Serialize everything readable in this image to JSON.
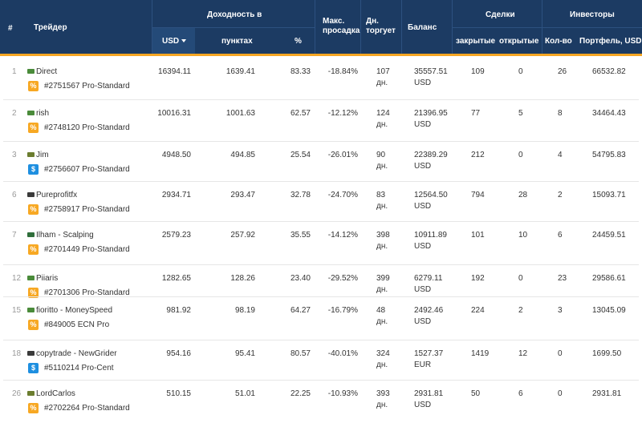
{
  "header": {
    "num": "#",
    "trader": "Трейдер",
    "yield_group": "Доходность в",
    "usd": "USD",
    "points": "пунктах",
    "percent": "%",
    "drawdown": "Макс. просадка",
    "days": "Дн. торгует",
    "balance": "Баланс",
    "deals_group": "Сделки",
    "closed": "закрытые",
    "open": "открытые",
    "investors_group": "Инвесторы",
    "count": "Кол-во",
    "portfolio": "Портфель, USD"
  },
  "rows": [
    {
      "rank": "1",
      "name": "Direct",
      "account": "#2751567 Pro-Standard",
      "badge": "%",
      "badge_type": "pct",
      "flag": "#4a8b3a",
      "usd": "16394.11",
      "points": "1639.41",
      "pct": "83.33",
      "drawdown": "-18.84%",
      "days_n": "107",
      "days_u": "дн.",
      "bal_n": "35557.51",
      "bal_c": "USD",
      "closed": "109",
      "open": "0",
      "inv": "26",
      "portfolio": "66532.82"
    },
    {
      "rank": "2",
      "name": "rish",
      "account": "#2748120 Pro-Standard",
      "badge": "%",
      "badge_type": "pct",
      "flag": "#4a8b3a",
      "usd": "10016.31",
      "points": "1001.63",
      "pct": "62.57",
      "drawdown": "-12.12%",
      "days_n": "124",
      "days_u": "дн.",
      "bal_n": "21396.95",
      "bal_c": "USD",
      "closed": "77",
      "open": "5",
      "inv": "8",
      "portfolio": "34464.43"
    },
    {
      "rank": "3",
      "name": "Jim",
      "account": "#2756607 Pro-Standard",
      "badge": "$",
      "badge_type": "usd",
      "flag": "#6b7d2f",
      "usd": "4948.50",
      "points": "494.85",
      "pct": "25.54",
      "drawdown": "-26.01%",
      "days_n": "90",
      "days_u": "дн.",
      "bal_n": "22389.29",
      "bal_c": "USD",
      "closed": "212",
      "open": "0",
      "inv": "4",
      "portfolio": "54795.83"
    },
    {
      "rank": "6",
      "name": "Pureprofitfx",
      "account": "#2758917 Pro-Standard",
      "badge": "%",
      "badge_type": "pct",
      "flag": "#3a3a3a",
      "usd": "2934.71",
      "points": "293.47",
      "pct": "32.78",
      "drawdown": "-24.70%",
      "days_n": "83",
      "days_u": "дн.",
      "bal_n": "12564.50",
      "bal_c": "USD",
      "closed": "794",
      "open": "28",
      "inv": "2",
      "portfolio": "15093.71"
    },
    {
      "rank": "7",
      "name": "Ilham - Scalping",
      "account": "#2701449 Pro-Standard",
      "badge": "%",
      "badge_type": "pct",
      "flag": "#2f6e3a",
      "usd": "2579.23",
      "points": "257.92",
      "pct": "35.55",
      "drawdown": "-14.12%",
      "days_n": "398",
      "days_u": "дн.",
      "bal_n": "10911.89",
      "bal_c": "USD",
      "closed": "101",
      "open": "10",
      "inv": "6",
      "portfolio": "24459.51"
    },
    {
      "rank": "12",
      "name": "Piiaris",
      "account": "#2701306 Pro-Standard",
      "badge": "%",
      "badge_type": "pct",
      "flag": "#4a8b3a",
      "usd": "1282.65",
      "points": "128.26",
      "pct": "23.40",
      "drawdown": "-29.52%",
      "days_n": "399",
      "days_u": "дн.",
      "bal_n": "6279.11",
      "bal_c": "USD",
      "closed": "192",
      "open": "0",
      "inv": "23",
      "portfolio": "29586.61"
    },
    {
      "rank": "15",
      "name": "fioritto - MoneySpeed",
      "account": "#849005 ECN Pro",
      "badge": "%",
      "badge_type": "pct",
      "flag": "#4a8b3a",
      "usd": "981.92",
      "points": "98.19",
      "pct": "64.27",
      "drawdown": "-16.79%",
      "days_n": "48",
      "days_u": "дн.",
      "bal_n": "2492.46",
      "bal_c": "USD",
      "closed": "224",
      "open": "2",
      "inv": "3",
      "portfolio": "13045.09"
    },
    {
      "rank": "18",
      "name": "copytrade - NewGrider",
      "account": "#5110214 Pro-Cent",
      "badge": "$",
      "badge_type": "usd",
      "flag": "#3a3a3a",
      "usd": "954.16",
      "points": "95.41",
      "pct": "80.57",
      "drawdown": "-40.01%",
      "days_n": "324",
      "days_u": "дн.",
      "bal_n": "1527.37",
      "bal_c": "EUR",
      "closed": "1419",
      "open": "12",
      "inv": "0",
      "portfolio": "1699.50"
    },
    {
      "rank": "26",
      "name": "LordCarlos",
      "account": "#2702264 Pro-Standard",
      "badge": "%",
      "badge_type": "pct",
      "flag": "#6b7d2f",
      "usd": "510.15",
      "points": "51.01",
      "pct": "22.25",
      "drawdown": "-10.93%",
      "days_n": "393",
      "days_u": "дн.",
      "bal_n": "2931.81",
      "bal_c": "USD",
      "closed": "50",
      "open": "6",
      "inv": "0",
      "portfolio": "2931.81"
    }
  ],
  "colors": {
    "header_bg": "#1c3b63",
    "accent": "#f6a623",
    "badge_pct": "#f7a823",
    "badge_usd": "#1e8fe0"
  }
}
